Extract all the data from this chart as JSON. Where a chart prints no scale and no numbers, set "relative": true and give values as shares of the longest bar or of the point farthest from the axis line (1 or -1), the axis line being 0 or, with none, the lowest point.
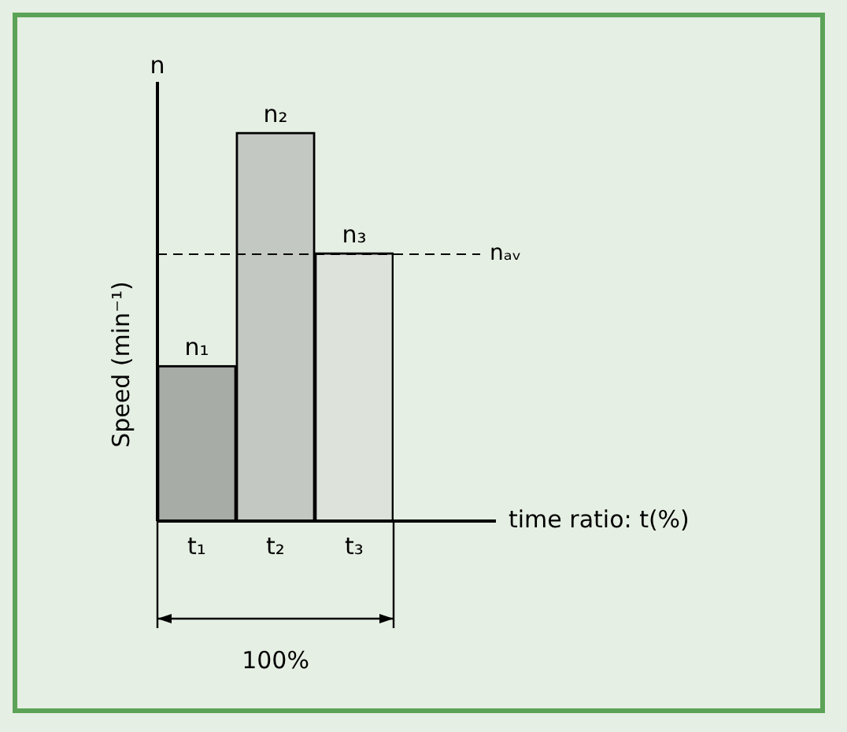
{
  "chart_data": {
    "type": "bar",
    "relative": true,
    "categories": [
      "t₁",
      "t₂",
      "t₃"
    ],
    "values": [
      0.4,
      1,
      0.69
    ],
    "colors": [
      "#a8aca6",
      "#c4c8c2",
      "#dde3da"
    ],
    "xlabel": "time ratio: t(%)",
    "ylabel": "Speed (min⁻¹)",
    "ref_lines": [
      {
        "axis": "y",
        "value": 0.69,
        "label": "nₐᵥ",
        "color": "#000000",
        "line_style": "dashed"
      }
    ],
    "annotations": [
      "n",
      "100%",
      {
        "text": "n₁",
        "x": "t₁",
        "y": 0.4
      },
      {
        "text": "n₂",
        "x": "t₂",
        "y": 1
      },
      {
        "text": "n₃",
        "x": "t₃",
        "y": 0.69
      }
    ],
    "grid": false,
    "legend": false
  }
}
